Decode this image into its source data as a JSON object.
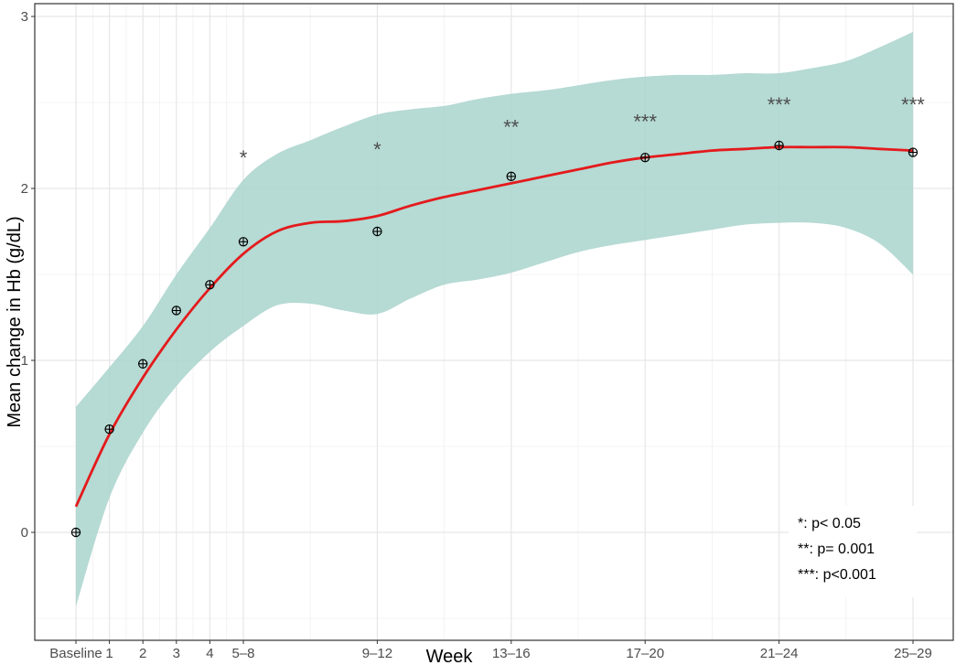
{
  "chart_data": {
    "type": "line",
    "title": "",
    "xlabel": "Week",
    "ylabel": "Mean change in Hb (g/dL)",
    "ylim": [
      -0.6,
      3.0
    ],
    "y_ticks": [
      0,
      1,
      2,
      3
    ],
    "categories": [
      "Baseline",
      "1",
      "2",
      "3",
      "4",
      "5–8",
      "9–12",
      "13–16",
      "17–20",
      "21–24",
      "25–29"
    ],
    "x_positions": [
      0,
      1,
      2,
      3,
      4,
      5,
      9,
      13,
      17,
      21,
      25
    ],
    "points": [
      0.0,
      0.6,
      0.98,
      1.29,
      1.44,
      1.69,
      1.75,
      2.07,
      2.18,
      2.25,
      2.21
    ],
    "smooth_line": {
      "color": "#e41a1c",
      "x": [
        0,
        1,
        2,
        3,
        4,
        5,
        6,
        7,
        8,
        9,
        10,
        11,
        12,
        13,
        14,
        15,
        16,
        17,
        18,
        19,
        20,
        21,
        22,
        23,
        24,
        25
      ],
      "y": [
        0.15,
        0.57,
        0.9,
        1.18,
        1.42,
        1.62,
        1.75,
        1.8,
        1.81,
        1.84,
        1.9,
        1.95,
        1.99,
        2.03,
        2.07,
        2.11,
        2.15,
        2.18,
        2.2,
        2.22,
        2.23,
        2.24,
        2.24,
        2.24,
        2.23,
        2.22
      ]
    },
    "confidence_band": {
      "color": "#a9d3cc",
      "x": [
        0,
        1,
        2,
        3,
        4,
        5,
        6,
        7,
        8,
        9,
        10,
        11,
        12,
        13,
        14,
        15,
        16,
        17,
        18,
        19,
        20,
        21,
        22,
        23,
        24,
        25
      ],
      "upper": [
        0.73,
        0.96,
        1.2,
        1.5,
        1.77,
        2.05,
        2.2,
        2.28,
        2.36,
        2.43,
        2.46,
        2.48,
        2.52,
        2.55,
        2.57,
        2.6,
        2.63,
        2.65,
        2.66,
        2.66,
        2.67,
        2.67,
        2.7,
        2.74,
        2.82,
        2.91
      ],
      "lower": [
        -0.43,
        0.2,
        0.58,
        0.85,
        1.05,
        1.2,
        1.32,
        1.33,
        1.29,
        1.27,
        1.36,
        1.44,
        1.47,
        1.51,
        1.57,
        1.63,
        1.67,
        1.7,
        1.73,
        1.76,
        1.79,
        1.8,
        1.8,
        1.77,
        1.68,
        1.5
      ]
    },
    "significance": [
      {
        "x": 5,
        "y": 2.18,
        "label": "*"
      },
      {
        "x": 9,
        "y": 2.23,
        "label": "*"
      },
      {
        "x": 13,
        "y": 2.36,
        "label": "**"
      },
      {
        "x": 17,
        "y": 2.39,
        "label": "***"
      },
      {
        "x": 21,
        "y": 2.49,
        "label": "***"
      },
      {
        "x": 25,
        "y": 2.49,
        "label": "***"
      }
    ],
    "legend": {
      "position": "bottom-right",
      "entries": [
        "*: p< 0.05",
        "**: p= 0.001",
        "***: p<0.001"
      ]
    },
    "grid": true
  }
}
